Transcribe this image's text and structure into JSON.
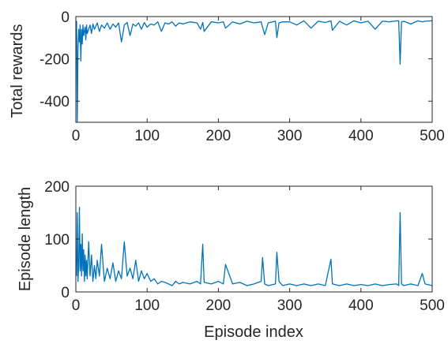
{
  "chart_data": [
    {
      "type": "line",
      "ylabel": "Total rewards",
      "xlabel": "",
      "xlim": [
        0,
        500
      ],
      "ylim": [
        -500,
        0
      ],
      "xticks": [
        "0",
        "100",
        "200",
        "300",
        "400",
        "500"
      ],
      "yticks": [
        "0",
        "-200",
        "-400"
      ],
      "grid": false,
      "series": [
        {
          "color": "#0072BD",
          "x": [
            1,
            2,
            3,
            4,
            5,
            6,
            7,
            8,
            9,
            10,
            11,
            12,
            13,
            14,
            15,
            16,
            18,
            20,
            22,
            24,
            26,
            28,
            30,
            33,
            36,
            40,
            44,
            48,
            52,
            56,
            60,
            64,
            68,
            72,
            76,
            80,
            84,
            88,
            92,
            96,
            100,
            105,
            110,
            115,
            120,
            125,
            130,
            135,
            140,
            145,
            150,
            160,
            170,
            175,
            178,
            180,
            190,
            200,
            207,
            210,
            220,
            230,
            240,
            250,
            260,
            265,
            270,
            280,
            282,
            285,
            290,
            300,
            310,
            320,
            330,
            340,
            350,
            358,
            360,
            370,
            380,
            390,
            400,
            410,
            420,
            430,
            440,
            450,
            453,
            455,
            457,
            460,
            470,
            480,
            486,
            490,
            500
          ],
          "y": [
            -20,
            -500,
            -150,
            -60,
            -120,
            -40,
            -210,
            -60,
            -130,
            -40,
            -90,
            -70,
            -50,
            -110,
            -40,
            -80,
            -60,
            -40,
            -80,
            -35,
            -60,
            -45,
            -30,
            -70,
            -40,
            -55,
            -30,
            -60,
            -35,
            -50,
            -30,
            -120,
            -40,
            -28,
            -90,
            -35,
            -45,
            -30,
            -60,
            -28,
            -50,
            -35,
            -40,
            -25,
            -70,
            -30,
            -35,
            -25,
            -45,
            -30,
            -35,
            -25,
            -30,
            -60,
            -28,
            -70,
            -25,
            -30,
            -25,
            -55,
            -25,
            -35,
            -22,
            -30,
            -25,
            -85,
            -30,
            -22,
            -100,
            -30,
            -25,
            -25,
            -40,
            -20,
            -55,
            -22,
            -28,
            -20,
            -65,
            -22,
            -40,
            -20,
            -30,
            -22,
            -60,
            -22,
            -25,
            -20,
            -20,
            -225,
            -25,
            -22,
            -35,
            -20,
            -25,
            -22,
            -20
          ]
        }
      ]
    },
    {
      "type": "line",
      "ylabel": "Episode length",
      "xlabel": "Episode index",
      "xlim": [
        0,
        500
      ],
      "ylim": [
        0,
        200
      ],
      "xticks": [
        "0",
        "100",
        "200",
        "300",
        "400",
        "500"
      ],
      "yticks": [
        "0",
        "100",
        "200"
      ],
      "grid": false,
      "series": [
        {
          "color": "#0072BD",
          "x": [
            1,
            2,
            3,
            4,
            5,
            6,
            7,
            8,
            9,
            10,
            11,
            12,
            13,
            14,
            15,
            16,
            18,
            20,
            22,
            24,
            26,
            28,
            30,
            33,
            36,
            40,
            44,
            48,
            52,
            56,
            60,
            64,
            68,
            72,
            76,
            80,
            84,
            88,
            92,
            96,
            100,
            105,
            110,
            115,
            120,
            125,
            130,
            135,
            140,
            145,
            150,
            160,
            170,
            175,
            178,
            180,
            190,
            200,
            207,
            210,
            220,
            230,
            240,
            250,
            260,
            262,
            265,
            270,
            280,
            282,
            285,
            290,
            300,
            310,
            320,
            330,
            340,
            350,
            358,
            360,
            370,
            380,
            390,
            400,
            410,
            420,
            430,
            440,
            450,
            453,
            455,
            457,
            460,
            470,
            480,
            486,
            490,
            500
          ],
          "y": [
            30,
            150,
            20,
            50,
            160,
            40,
            90,
            30,
            110,
            40,
            80,
            20,
            70,
            30,
            60,
            25,
            95,
            30,
            70,
            20,
            50,
            25,
            60,
            30,
            90,
            20,
            45,
            25,
            55,
            20,
            40,
            25,
            95,
            30,
            45,
            25,
            60,
            20,
            40,
            25,
            35,
            20,
            25,
            15,
            20,
            18,
            15,
            12,
            20,
            15,
            18,
            15,
            20,
            15,
            90,
            18,
            15,
            20,
            15,
            52,
            15,
            18,
            12,
            15,
            20,
            65,
            15,
            12,
            15,
            75,
            20,
            12,
            15,
            12,
            15,
            12,
            15,
            12,
            62,
            15,
            12,
            15,
            12,
            14,
            12,
            15,
            12,
            14,
            15,
            12,
            150,
            15,
            12,
            15,
            12,
            35,
            15,
            12
          ]
        }
      ]
    }
  ]
}
